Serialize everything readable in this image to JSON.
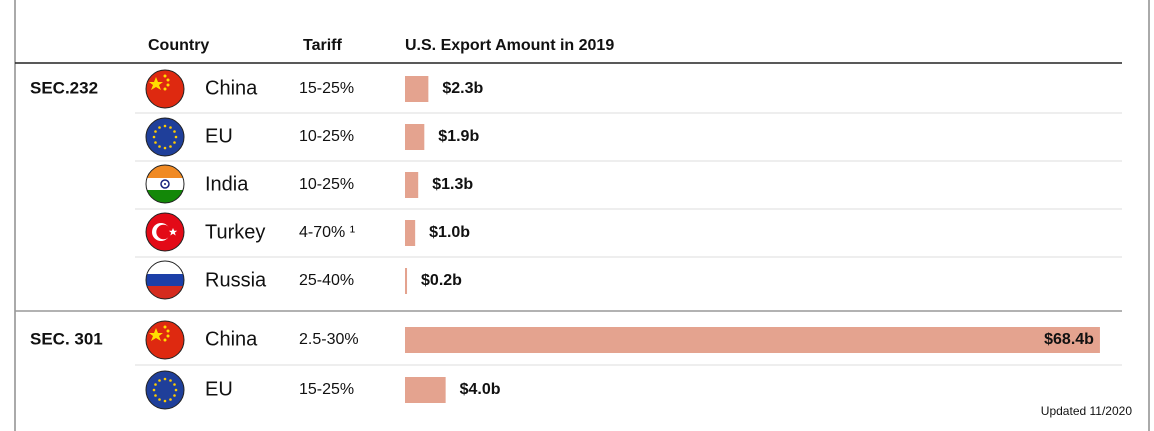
{
  "header": {
    "country": "Country",
    "tariff": "Tariff",
    "export": "U.S. Export Amount in 2019"
  },
  "groups": [
    {
      "section": "SEC.232",
      "rows": [
        {
          "country": "China",
          "tariff": "15-25%",
          "export": 2.3,
          "export_label": "$2.3b"
        },
        {
          "country": "EU",
          "tariff": "10-25%",
          "export": 1.9,
          "export_label": "$1.9b"
        },
        {
          "country": "India",
          "tariff": "10-25%",
          "export": 1.3,
          "export_label": "$1.3b"
        },
        {
          "country": "Turkey",
          "tariff": "4-70% ¹",
          "export": 1.0,
          "export_label": "$1.0b"
        },
        {
          "country": "Russia",
          "tariff": "25-40%",
          "export": 0.2,
          "export_label": "$0.2b"
        }
      ]
    },
    {
      "section": "SEC. 301",
      "rows": [
        {
          "country": "China",
          "tariff": "2.5-30%",
          "export": 68.4,
          "export_label": "$68.4b"
        },
        {
          "country": "EU",
          "tariff": "15-25%",
          "export": 4.0,
          "export_label": "$4.0b"
        }
      ]
    }
  ],
  "footnote": "Updated 11/2020"
}
